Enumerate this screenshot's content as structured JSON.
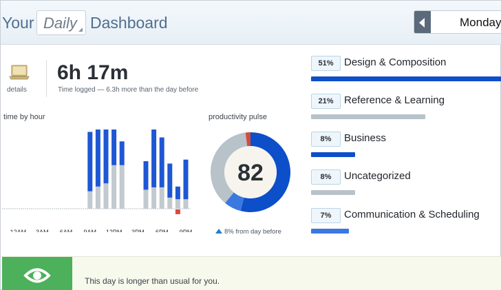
{
  "header": {
    "title_prefix": "Your",
    "range_select": "Daily",
    "title_suffix": "Dashboard",
    "date": "Monday,"
  },
  "summary": {
    "details_label": "details",
    "total_time": "6h 17m",
    "total_subtitle": "Time logged — 6.3h more than the day before"
  },
  "chart_data": {
    "type": "bar",
    "title": "time by hour",
    "x_tick_labels": [
      "12AM",
      "3AM",
      "6AM",
      "9AM",
      "12PM",
      "3PM",
      "6PM",
      "9PM"
    ],
    "series": [
      {
        "color": "#c2c9cf",
        "values": [
          0,
          0,
          0,
          0,
          0,
          0,
          0,
          0,
          0,
          0,
          0.22,
          0.28,
          0.32,
          0.55,
          0.55,
          0,
          0,
          0.24,
          0.27,
          0.27,
          0.14,
          0.12,
          0.12,
          0
        ]
      },
      {
        "color": "#1e57d4",
        "values": [
          0,
          0,
          0,
          0,
          0,
          0,
          0,
          0,
          0,
          0,
          0.75,
          0.72,
          0.68,
          0.45,
          0.3,
          0,
          0,
          0.36,
          0.73,
          0.63,
          0.43,
          0.16,
          0.5,
          0
        ]
      },
      {
        "color": "#e0483c",
        "values": [
          0,
          0,
          0,
          0,
          0,
          0,
          0,
          0,
          0,
          0,
          0,
          0,
          0,
          0,
          0,
          0,
          0,
          0,
          0,
          0,
          0,
          -0.06,
          0,
          0
        ]
      }
    ]
  },
  "pulse": {
    "title": "productivity pulse",
    "value": "82",
    "change": "8% from day before",
    "segments": [
      {
        "color": "#0d4fc9",
        "fraction": 0.54
      },
      {
        "color": "#3b78e0",
        "fraction": 0.07
      },
      {
        "color": "#b8c2c9",
        "fraction": 0.37
      },
      {
        "color": "#d24c3c",
        "fraction": 0.02
      }
    ]
  },
  "categories": [
    {
      "percent": "51%",
      "name": "Design & Composition",
      "fraction": 1.0,
      "color": "#0d4fc9"
    },
    {
      "percent": "21%",
      "name": "Reference & Learning",
      "fraction": 0.6,
      "color": "#b8c2c9"
    },
    {
      "percent": "8%",
      "name": "Business",
      "fraction": 0.23,
      "color": "#0d4fc9"
    },
    {
      "percent": "8%",
      "name": "Uncategorized",
      "fraction": 0.23,
      "color": "#b8c2c9"
    },
    {
      "percent": "7%",
      "name": "Communication & Scheduling",
      "fraction": 0.2,
      "color": "#3b78e0"
    }
  ],
  "banner": {
    "message": "This day is longer than usual for you.",
    "icon": "eye-icon"
  }
}
